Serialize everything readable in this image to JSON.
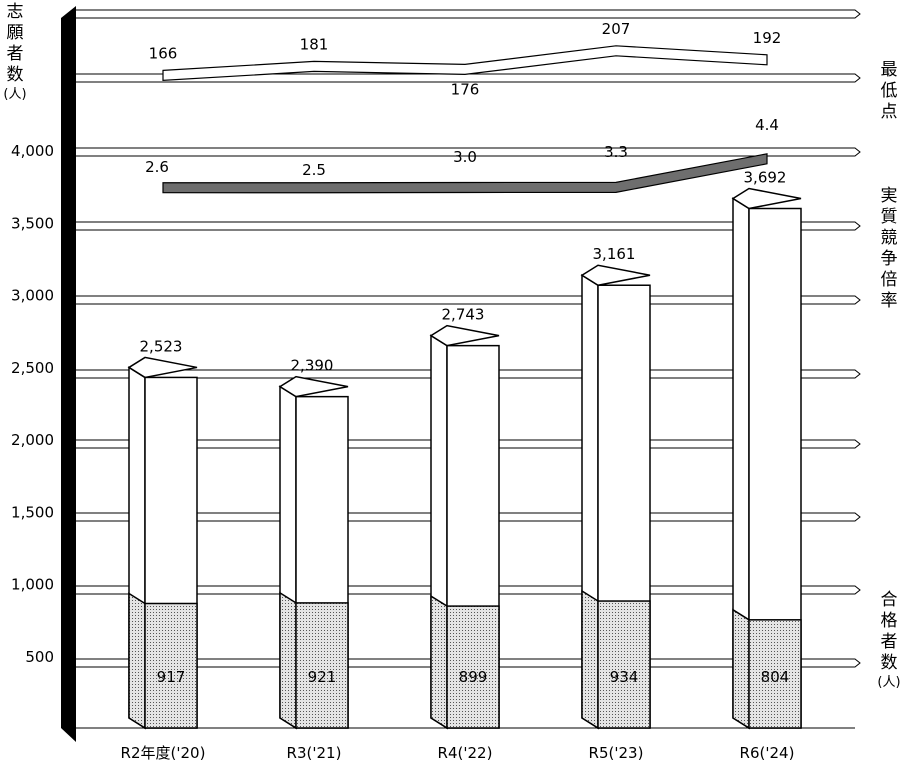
{
  "chart_data": {
    "type": "bar",
    "categories": [
      "R2年度('20)",
      "R3('21)",
      "R4('22)",
      "R5('23)",
      "R6('24)"
    ],
    "y_ticks": [
      "500",
      "1,000",
      "1,500",
      "2,000",
      "2,500",
      "3,000",
      "3,500",
      "4,000"
    ],
    "ylim": [
      0,
      4800
    ],
    "series": [
      {
        "name": "志願者数",
        "values": [
          2523,
          2390,
          2743,
          3161,
          3692
        ],
        "labels": [
          "2,523",
          "2,390",
          "2,743",
          "3,161",
          "3,692"
        ]
      },
      {
        "name": "合格者数",
        "values": [
          917,
          921,
          899,
          934,
          804
        ],
        "labels": [
          "917",
          "921",
          "899",
          "934",
          "804"
        ]
      },
      {
        "name": "最低点",
        "values": [
          166,
          181,
          176,
          207,
          192
        ],
        "labels": [
          "166",
          "181",
          "176",
          "207",
          "192"
        ]
      },
      {
        "name": "実質競争倍率",
        "values": [
          2.6,
          2.5,
          3.0,
          3.3,
          4.4
        ],
        "labels": [
          "2.6",
          "2.5",
          "3.0",
          "3.3",
          "4.4"
        ]
      }
    ],
    "left_axis_label": [
      "志",
      "願",
      "者",
      "数"
    ],
    "left_axis_unit": "(人)",
    "right_label_min_score": [
      "最",
      "低",
      "点"
    ],
    "right_label_ratio": [
      "実",
      "質",
      "競",
      "争",
      "倍",
      "率"
    ],
    "right_label_passers": [
      "合",
      "格",
      "者",
      "数"
    ],
    "right_label_passers_unit": "(人)",
    "colors": {
      "ratio_line": "#6e6e6e",
      "passers_fill": "#dcdcdc",
      "axis_bar": "#000000"
    }
  }
}
